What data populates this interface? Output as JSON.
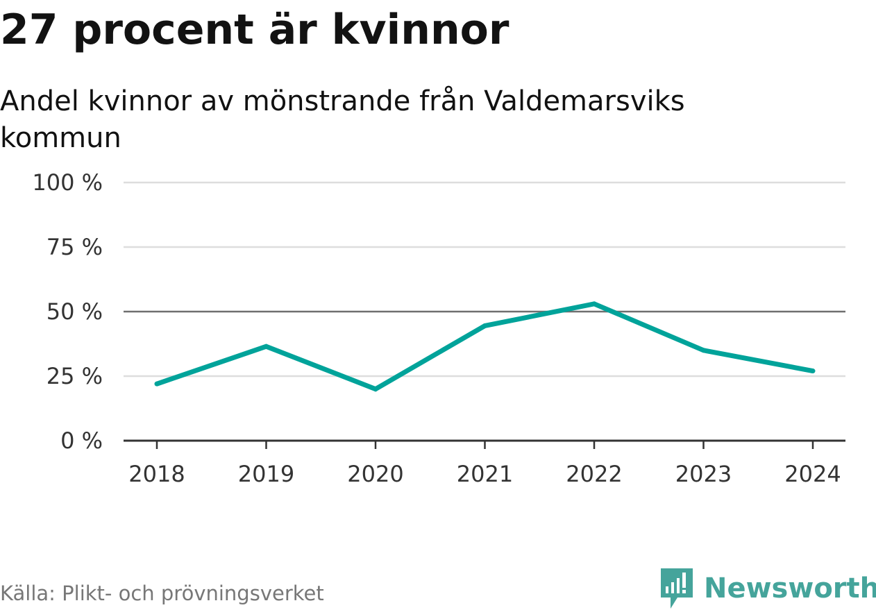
{
  "title": "27 procent är kvinnor",
  "subtitle": "Andel kvinnor av mönstrande från Valdemarsviks kommun",
  "source": "Källa: Plikt- och prövningsverket",
  "logo": {
    "text": "Newsworthy",
    "icon": "newsworthy-logo-icon",
    "color": "#45a49b"
  },
  "chart_data": {
    "type": "line",
    "title": "27 procent är kvinnor",
    "subtitle": "Andel kvinnor av mönstrande från Valdemarsviks kommun",
    "xlabel": "",
    "ylabel": "",
    "categories": [
      "2018",
      "2019",
      "2020",
      "2021",
      "2022",
      "2023",
      "2024"
    ],
    "series": [
      {
        "name": "Andel kvinnor",
        "color": "#00a39a",
        "values": [
          22,
          36.5,
          20,
          44.5,
          53,
          35,
          27
        ]
      }
    ],
    "ylim": [
      0,
      100
    ],
    "y_ticks": [
      0,
      25,
      50,
      75,
      100
    ],
    "y_tick_labels": [
      "0 %",
      "25 %",
      "50 %",
      "75 %",
      "100 %"
    ],
    "reference_line": 50,
    "grid": true,
    "legend": "none"
  }
}
